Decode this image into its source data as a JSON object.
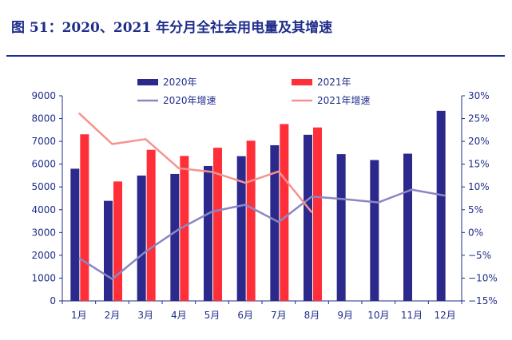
{
  "header": {
    "title": "图 51：2020、2021 年分月全社会用电量及其增速"
  },
  "chart_data": {
    "type": "bar",
    "categories": [
      "1月",
      "2月",
      "3月",
      "4月",
      "5月",
      "6月",
      "7月",
      "8月",
      "9月",
      "10月",
      "11月",
      "12月"
    ],
    "series": [
      {
        "name": "2020年",
        "kind": "bar",
        "axis": "left",
        "color": "#2b2a8c",
        "values": [
          5800,
          4390,
          5500,
          5570,
          5920,
          6350,
          6830,
          7290,
          6440,
          6180,
          6460,
          8340
        ]
      },
      {
        "name": "2021年",
        "kind": "bar",
        "axis": "left",
        "color": "#ff2f3a",
        "values": [
          7310,
          5240,
          6630,
          6360,
          6720,
          7030,
          7760,
          7610,
          null,
          null,
          null,
          null
        ]
      },
      {
        "name": "2020年增速",
        "kind": "line",
        "axis": "right",
        "color": "#8a87c4",
        "values": [
          -5.6,
          -10.2,
          -4.2,
          0.7,
          4.6,
          6.1,
          2.3,
          7.9,
          7.3,
          6.6,
          9.4,
          8.1
        ]
      },
      {
        "name": "2021年增速",
        "kind": "line",
        "axis": "right",
        "color": "#f59390",
        "values": [
          26.2,
          19.4,
          20.5,
          14.1,
          13.3,
          10.9,
          13.4,
          4.4,
          null,
          null,
          null,
          null
        ]
      }
    ],
    "left_axis": {
      "min": 0,
      "max": 9000,
      "step": 1000,
      "tick_labels": [
        "0",
        "1000",
        "2000",
        "3000",
        "4000",
        "5000",
        "6000",
        "7000",
        "8000",
        "9000"
      ]
    },
    "right_axis": {
      "min": -15,
      "max": 30,
      "step": 5,
      "tick_labels": [
        "−15%",
        "−10%",
        "−5%",
        "0%",
        "5%",
        "10%",
        "15%",
        "20%",
        "25%",
        "30%"
      ]
    },
    "legend_position": "top-center"
  }
}
